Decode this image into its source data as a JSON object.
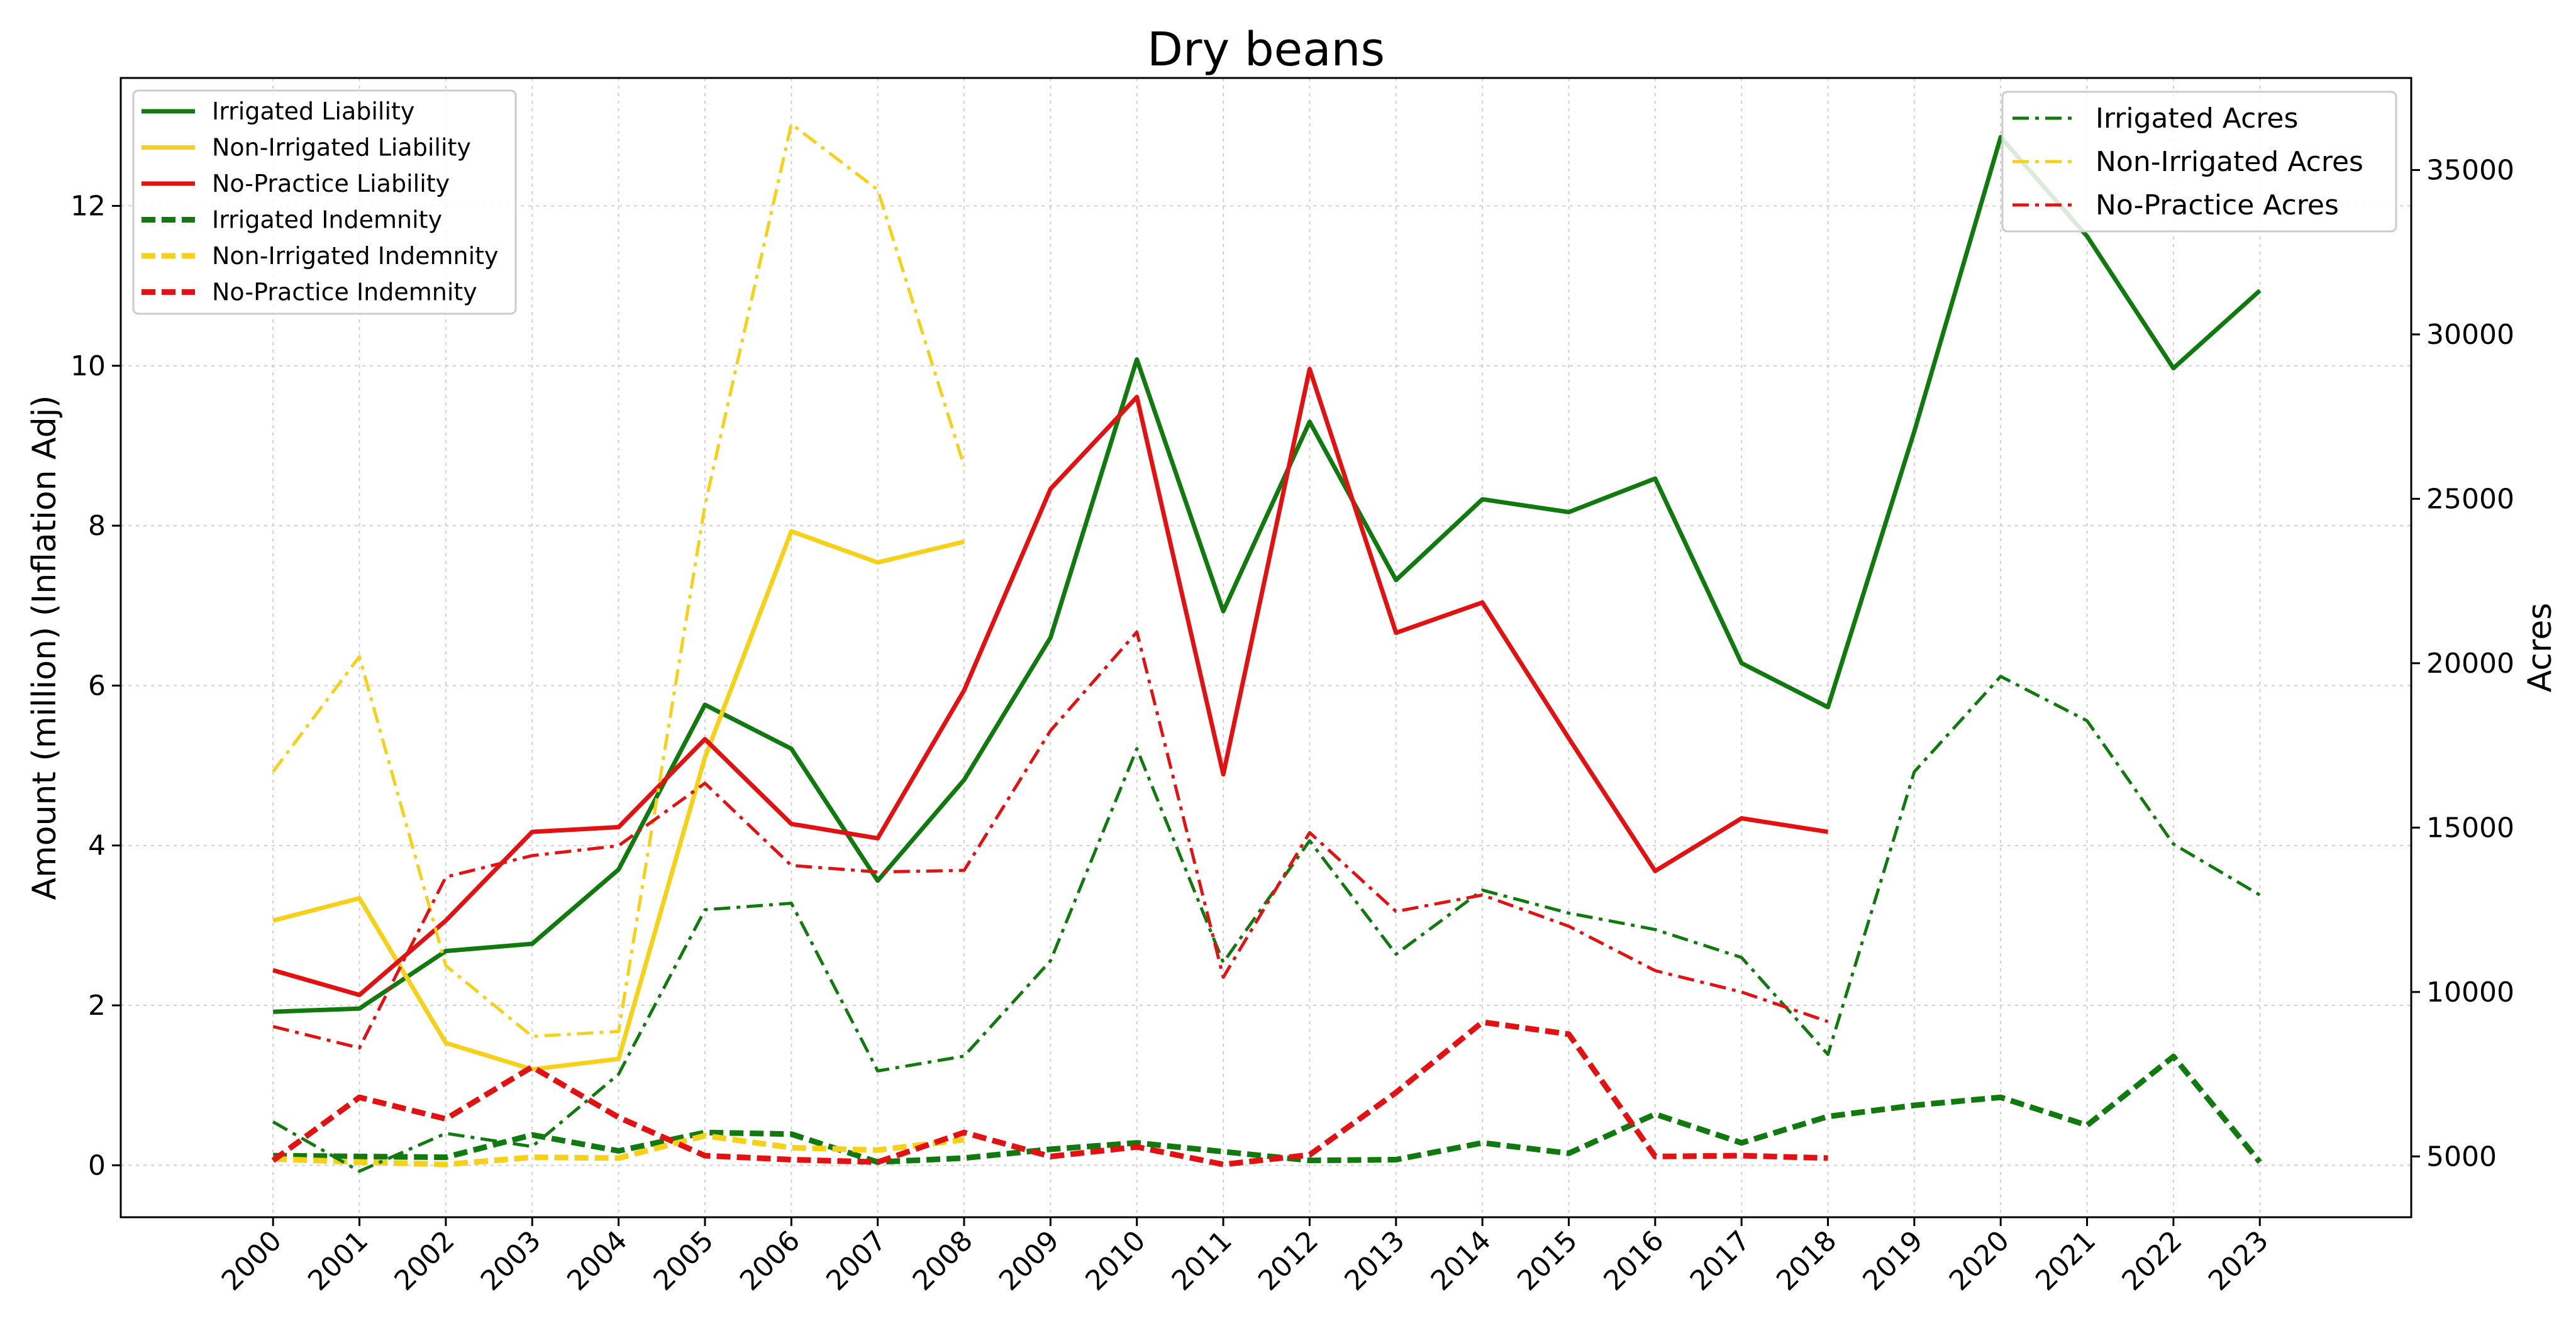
{
  "chart_data": {
    "type": "line",
    "title": "Dry beans",
    "xlabel": "",
    "ylabel_left": "Amount (million) (Inflation Adj)",
    "ylabel_right": "Acres",
    "x": [
      2000,
      2001,
      2002,
      2003,
      2004,
      2005,
      2006,
      2007,
      2008,
      2009,
      2010,
      2011,
      2012,
      2013,
      2014,
      2015,
      2016,
      2017,
      2018,
      2019,
      2020,
      2021,
      2022,
      2023
    ],
    "ylim_left": [
      -0.65,
      13.6
    ],
    "ylim_right": [
      3150,
      37800
    ],
    "yticks_left": [
      0,
      2,
      4,
      6,
      8,
      10,
      12
    ],
    "yticks_right": [
      5000,
      10000,
      15000,
      20000,
      25000,
      30000,
      35000
    ],
    "grid": true,
    "legend_left_position": "top-left",
    "legend_right_position": "top-right",
    "colors": {
      "irrigated": "#117a0e",
      "non_irrigated": "#f7d117",
      "no_practice": "#e31212"
    },
    "series": [
      {
        "name": "Irrigated Liability",
        "axis": "left",
        "color": "#117a0e",
        "dash": "solid",
        "values": [
          1.92,
          1.96,
          2.68,
          2.77,
          3.7,
          5.76,
          5.21,
          3.56,
          4.82,
          6.6,
          10.08,
          6.93,
          9.3,
          7.32,
          8.33,
          8.17,
          8.59,
          6.28,
          5.73,
          9.18,
          12.86,
          11.62,
          9.97,
          10.94
        ]
      },
      {
        "name": "Non-Irrigated Liability",
        "axis": "left",
        "color": "#f7d117",
        "dash": "solid",
        "values": [
          3.06,
          3.34,
          1.53,
          1.2,
          1.33,
          5.1,
          7.93,
          7.54,
          7.8,
          null,
          null,
          null,
          null,
          null,
          null,
          null,
          null,
          null,
          null,
          null,
          null,
          null,
          null,
          null
        ]
      },
      {
        "name": "No-Practice Liability",
        "axis": "left",
        "color": "#e31212",
        "dash": "solid",
        "values": [
          2.44,
          2.13,
          3.06,
          4.17,
          4.23,
          5.33,
          4.27,
          4.09,
          5.94,
          8.46,
          9.61,
          4.89,
          9.96,
          6.66,
          7.04,
          5.34,
          3.68,
          4.34,
          4.17,
          null,
          null,
          null,
          null,
          null
        ]
      },
      {
        "name": "Irrigated Indemnity",
        "axis": "left",
        "color": "#117a0e",
        "dash": "dashed",
        "values": [
          0.12,
          0.11,
          0.1,
          0.38,
          0.18,
          0.41,
          0.39,
          0.04,
          0.09,
          0.2,
          0.28,
          0.17,
          0.06,
          0.07,
          0.28,
          0.15,
          0.64,
          0.28,
          0.61,
          0.75,
          0.85,
          0.5,
          1.36,
          0.04
        ]
      },
      {
        "name": "Non-Irrigated Indemnity",
        "axis": "left",
        "color": "#f7d117",
        "dash": "dashed",
        "values": [
          0.08,
          0.04,
          0.01,
          0.1,
          0.09,
          0.37,
          0.22,
          0.19,
          0.32,
          null,
          null,
          null,
          null,
          null,
          null,
          null,
          null,
          null,
          null,
          null,
          null,
          null,
          null,
          null
        ]
      },
      {
        "name": "No-Practice Indemnity",
        "axis": "left",
        "color": "#e31212",
        "dash": "dashed",
        "values": [
          0.06,
          0.85,
          0.58,
          1.23,
          0.6,
          0.12,
          0.07,
          0.04,
          0.41,
          0.11,
          0.23,
          0.01,
          0.13,
          0.91,
          1.79,
          1.64,
          0.11,
          0.12,
          0.09,
          null,
          null,
          null,
          null,
          null
        ]
      },
      {
        "name": "Irrigated Acres",
        "axis": "right",
        "color": "#117a0e",
        "dash": "dashdot",
        "values": [
          6050,
          4550,
          5700,
          5300,
          7500,
          12500,
          12700,
          7600,
          8050,
          10950,
          17400,
          10900,
          14600,
          11150,
          13100,
          12400,
          11900,
          11050,
          8100,
          16700,
          19600,
          18250,
          14500,
          12950
        ]
      },
      {
        "name": "Non-Irrigated Acres",
        "axis": "right",
        "color": "#f7d117",
        "dash": "dashdot",
        "values": [
          16700,
          20200,
          10800,
          8650,
          8800,
          24800,
          36400,
          34400,
          26000,
          null,
          null,
          null,
          null,
          null,
          null,
          null,
          null,
          null,
          null,
          null,
          null,
          null,
          null,
          null
        ]
      },
      {
        "name": "No-Practice Acres",
        "axis": "right",
        "color": "#e31212",
        "dash": "dashdot",
        "values": [
          8950,
          8300,
          13500,
          14150,
          14450,
          16350,
          13850,
          13650,
          13700,
          17950,
          20950,
          10450,
          14850,
          12450,
          12950,
          12000,
          10650,
          10000,
          9100,
          null,
          null,
          null,
          null,
          null
        ]
      }
    ]
  }
}
